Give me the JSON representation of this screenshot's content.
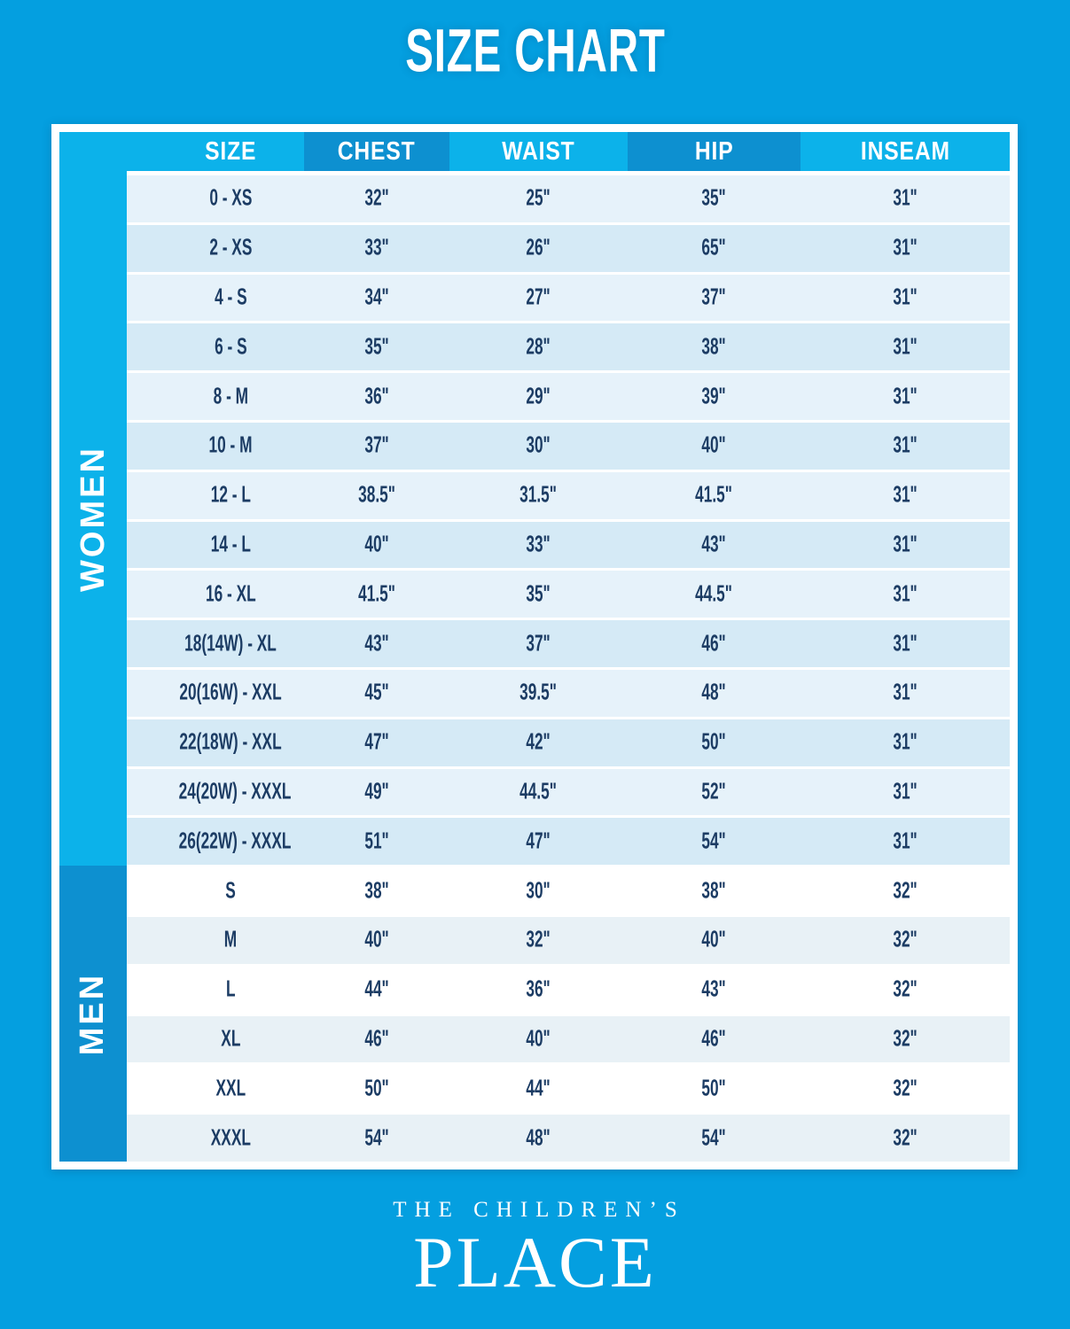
{
  "page": {
    "title": "SIZE CHART"
  },
  "colors": {
    "background": "#049fe0",
    "cyan": "#0cb2ea",
    "dark_blue": "#0d90d0",
    "row_light": "#e6f2fa",
    "row_blue": "#d5eaf6",
    "row_white": "#ffffff",
    "row_men_alt": "#e8f1f6",
    "text": "#1c3c64"
  },
  "chart_data": {
    "type": "table",
    "title": "SIZE CHART",
    "columns": [
      "SIZE",
      "CHEST",
      "WAIST",
      "HIP",
      "INSEAM"
    ],
    "sections": [
      {
        "label": "WOMEN",
        "rows": [
          [
            "0 - XS",
            "32\"",
            "25\"",
            "35\"",
            "31\""
          ],
          [
            "2 - XS",
            "33\"",
            "26\"",
            "65\"",
            "31\""
          ],
          [
            "4 - S",
            "34\"",
            "27\"",
            "37\"",
            "31\""
          ],
          [
            "6 - S",
            "35\"",
            "28\"",
            "38\"",
            "31\""
          ],
          [
            "8 - M",
            "36\"",
            "29\"",
            "39\"",
            "31\""
          ],
          [
            "10 - M",
            "37\"",
            "30\"",
            "40\"",
            "31\""
          ],
          [
            "12 - L",
            "38.5\"",
            "31.5\"",
            "41.5\"",
            "31\""
          ],
          [
            "14 - L",
            "40\"",
            "33\"",
            "43\"",
            "31\""
          ],
          [
            "16 - XL",
            "41.5\"",
            "35\"",
            "44.5\"",
            "31\""
          ],
          [
            "18(14W) - XL",
            "43\"",
            "37\"",
            "46\"",
            "31\""
          ],
          [
            "20(16W) - XXL",
            "45\"",
            "39.5\"",
            "48\"",
            "31\""
          ],
          [
            "22(18W) - XXL",
            "47\"",
            "42\"",
            "50\"",
            "31\""
          ],
          [
            "24(20W) - XXXL",
            "49\"",
            "44.5\"",
            "52\"",
            "31\""
          ],
          [
            "26(22W) - XXXL",
            "51\"",
            "47\"",
            "54\"",
            "31\""
          ]
        ]
      },
      {
        "label": "MEN",
        "rows": [
          [
            "S",
            "38\"",
            "30\"",
            "38\"",
            "32\""
          ],
          [
            "M",
            "40\"",
            "32\"",
            "40\"",
            "32\""
          ],
          [
            "L",
            "44\"",
            "36\"",
            "43\"",
            "32\""
          ],
          [
            "XL",
            "46\"",
            "40\"",
            "46\"",
            "32\""
          ],
          [
            "XXL",
            "50\"",
            "44\"",
            "50\"",
            "32\""
          ],
          [
            "XXXL",
            "54\"",
            "48\"",
            "54\"",
            "32\""
          ]
        ]
      }
    ]
  },
  "footer": {
    "brand_top": "THE CHILDREN’S",
    "brand_bottom": "PLACE"
  }
}
